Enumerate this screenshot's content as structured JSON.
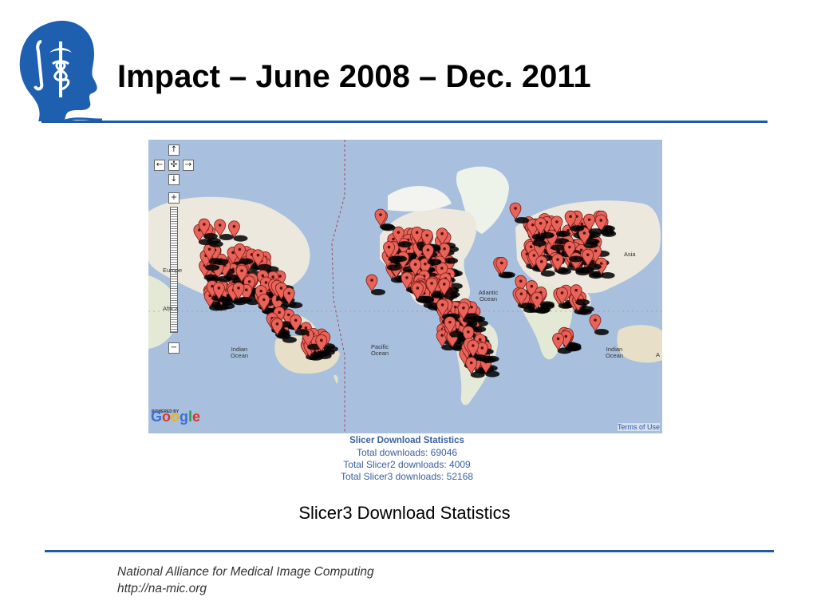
{
  "slide": {
    "title": "Impact – June 2008 – Dec. 2011",
    "caption": "Slicer3 Download Statistics",
    "footer_org": "National Alliance for Medical Image Computing",
    "footer_url": "http://na-mic.org",
    "accent_color": "#1f5aa8"
  },
  "logo": {
    "icon": "slicer-head-caduceus-logo"
  },
  "map": {
    "labels": {
      "europe": "Europe",
      "africa": "Africa",
      "indian_ocean_left": "Indian Ocean",
      "pacific_ocean": "Pacific Ocean",
      "atlantic_ocean": "Atlantic Ocean",
      "asia": "Asia",
      "indian_ocean_right": "Indian Ocean",
      "edge_a": "A"
    },
    "attribution": {
      "powered_by": "POWERED BY",
      "google": "Google",
      "terms": "Terms of Use"
    },
    "controls": {
      "pan_up": "↑",
      "pan_left": "←",
      "pan_center": "✣",
      "pan_right": "→",
      "pan_down": "↓",
      "zoom_in": "+",
      "zoom_out": "−"
    },
    "marker_color": "#e8645a"
  },
  "stats": {
    "heading": "Slicer Download Statistics",
    "total": "Total downloads: 69046",
    "slicer2": "Total Slicer2 downloads: 4009",
    "slicer3": "Total Slicer3 downloads: 52168"
  }
}
